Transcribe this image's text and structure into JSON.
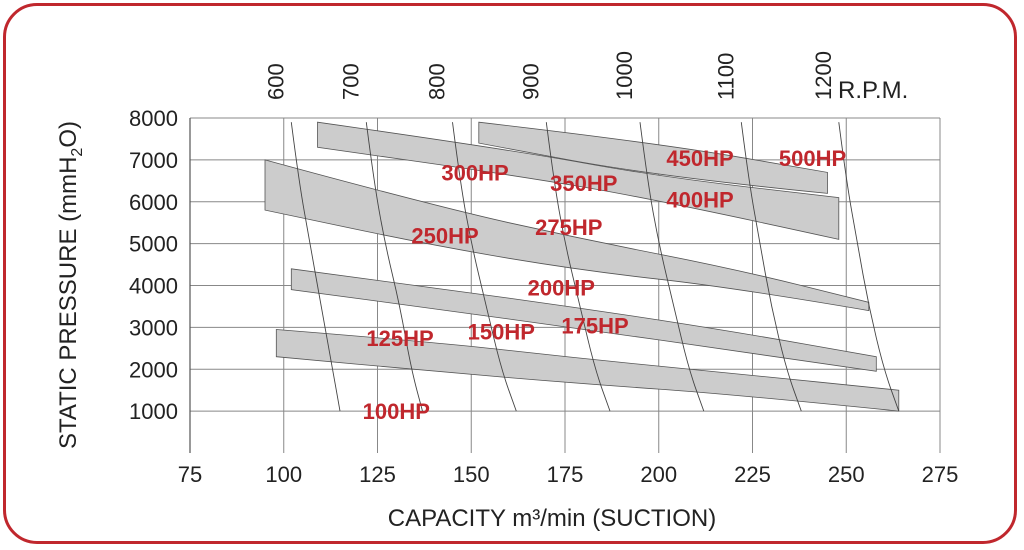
{
  "chart_data": {
    "type": "area",
    "xlabel": "CAPACITY m³/min (SUCTION)",
    "ylabel_main": "STATIC PRESSURE (mmH",
    "ylabel_sub": "2",
    "ylabel_tail": "O)",
    "rpm_label": "R.P.M.",
    "xlim": [
      75,
      275
    ],
    "ylim": [
      0,
      8000
    ],
    "x_ticks": [
      {
        "value": 75,
        "label": "75"
      },
      {
        "value": 100,
        "label": "100"
      },
      {
        "value": 125,
        "label": "125"
      },
      {
        "value": 150,
        "label": "150"
      },
      {
        "value": 175,
        "label": "175"
      },
      {
        "value": 200,
        "label": "200"
      },
      {
        "value": 225,
        "label": "225"
      },
      {
        "value": 250,
        "label": "250"
      },
      {
        "value": 275,
        "label": "275"
      }
    ],
    "y_ticks": [
      {
        "value": 1000,
        "label": "1000"
      },
      {
        "value": 2000,
        "label": "2000"
      },
      {
        "value": 3000,
        "label": "3000"
      },
      {
        "value": 4000,
        "label": "4000"
      },
      {
        "value": 5000,
        "label": "5000"
      },
      {
        "value": 6000,
        "label": "6000"
      },
      {
        "value": 7000,
        "label": "7000"
      },
      {
        "value": 8000,
        "label": "8000"
      }
    ],
    "rpm_lines": [
      {
        "label": "600",
        "points": [
          [
            102,
            7900
          ],
          [
            104,
            6500
          ],
          [
            107,
            5000
          ],
          [
            110,
            3500
          ],
          [
            113,
            2000
          ],
          [
            115,
            1000
          ]
        ]
      },
      {
        "label": "700",
        "points": [
          [
            122,
            7900
          ],
          [
            124,
            6500
          ],
          [
            127,
            5000
          ],
          [
            131,
            3500
          ],
          [
            134,
            2000
          ],
          [
            137,
            1000
          ]
        ]
      },
      {
        "label": "800",
        "points": [
          [
            145,
            7900
          ],
          [
            147,
            6500
          ],
          [
            150,
            5000
          ],
          [
            154,
            3500
          ],
          [
            158,
            2000
          ],
          [
            162,
            1000
          ]
        ]
      },
      {
        "label": "900",
        "points": [
          [
            170,
            7900
          ],
          [
            172,
            6500
          ],
          [
            175,
            5000
          ],
          [
            179,
            3500
          ],
          [
            183,
            2000
          ],
          [
            187,
            1000
          ]
        ]
      },
      {
        "label": "1000",
        "points": [
          [
            195,
            7900
          ],
          [
            197,
            6500
          ],
          [
            200,
            5000
          ],
          [
            204,
            3500
          ],
          [
            208,
            2000
          ],
          [
            212,
            1000
          ]
        ]
      },
      {
        "label": "1100",
        "points": [
          [
            222,
            7900
          ],
          [
            224,
            6500
          ],
          [
            227,
            5000
          ],
          [
            230,
            3500
          ],
          [
            234,
            2000
          ],
          [
            238,
            1000
          ]
        ]
      },
      {
        "label": "1200",
        "points": [
          [
            248,
            7900
          ],
          [
            250,
            6500
          ],
          [
            253,
            5000
          ],
          [
            256,
            3500
          ],
          [
            260,
            2000
          ],
          [
            264,
            1000
          ]
        ]
      }
    ],
    "bands": [
      {
        "upper": [
          [
            98,
            2950
          ],
          [
            140,
            2650
          ],
          [
            180,
            2250
          ],
          [
            220,
            1900
          ],
          [
            264,
            1500
          ]
        ],
        "lower": [
          [
            98,
            2300
          ],
          [
            140,
            1950
          ],
          [
            180,
            1650
          ],
          [
            220,
            1400
          ],
          [
            264,
            1000
          ]
        ]
      },
      {
        "upper": [
          [
            102,
            4400
          ],
          [
            140,
            3950
          ],
          [
            180,
            3450
          ],
          [
            220,
            2900
          ],
          [
            258,
            2300
          ]
        ],
        "lower": [
          [
            102,
            3900
          ],
          [
            140,
            3450
          ],
          [
            180,
            2950
          ],
          [
            220,
            2450
          ],
          [
            258,
            1950
          ]
        ]
      },
      {
        "upper": [
          [
            95,
            7000
          ],
          [
            140,
            5900
          ],
          [
            180,
            5100
          ],
          [
            220,
            4400
          ],
          [
            256,
            3600
          ]
        ],
        "lower": [
          [
            95,
            5800
          ],
          [
            140,
            4950
          ],
          [
            180,
            4350
          ],
          [
            220,
            3950
          ],
          [
            256,
            3400
          ]
        ]
      },
      {
        "upper": [
          [
            109,
            7900
          ],
          [
            160,
            7250
          ],
          [
            200,
            6600
          ],
          [
            248,
            6100
          ]
        ],
        "lower": [
          [
            109,
            7300
          ],
          [
            160,
            6650
          ],
          [
            200,
            6050
          ],
          [
            248,
            5100
          ]
        ]
      },
      {
        "upper": [
          [
            152,
            7900
          ],
          [
            200,
            7400
          ],
          [
            245,
            6700
          ]
        ],
        "lower": [
          [
            152,
            7400
          ],
          [
            200,
            6600
          ],
          [
            245,
            6200
          ]
        ]
      }
    ],
    "hp_labels": [
      {
        "text": "100HP",
        "x": 130,
        "y": 1000
      },
      {
        "text": "125HP",
        "x": 131,
        "y": 2750
      },
      {
        "text": "150HP",
        "x": 158,
        "y": 2900
      },
      {
        "text": "175HP",
        "x": 183,
        "y": 3050
      },
      {
        "text": "200HP",
        "x": 174,
        "y": 3950
      },
      {
        "text": "250HP",
        "x": 143,
        "y": 5200
      },
      {
        "text": "275HP",
        "x": 176,
        "y": 5400
      },
      {
        "text": "300HP",
        "x": 151,
        "y": 6700
      },
      {
        "text": "350HP",
        "x": 180,
        "y": 6450
      },
      {
        "text": "400HP",
        "x": 211,
        "y": 6050
      },
      {
        "text": "450HP",
        "x": 211,
        "y": 7050
      },
      {
        "text": "500HP",
        "x": 241,
        "y": 7050
      }
    ],
    "grid": true,
    "colors": {
      "band_fill": "#cccccc",
      "border": "#c0272d",
      "label_color": "#c0272d",
      "grid_line": "#888888",
      "text": "#222222"
    }
  }
}
